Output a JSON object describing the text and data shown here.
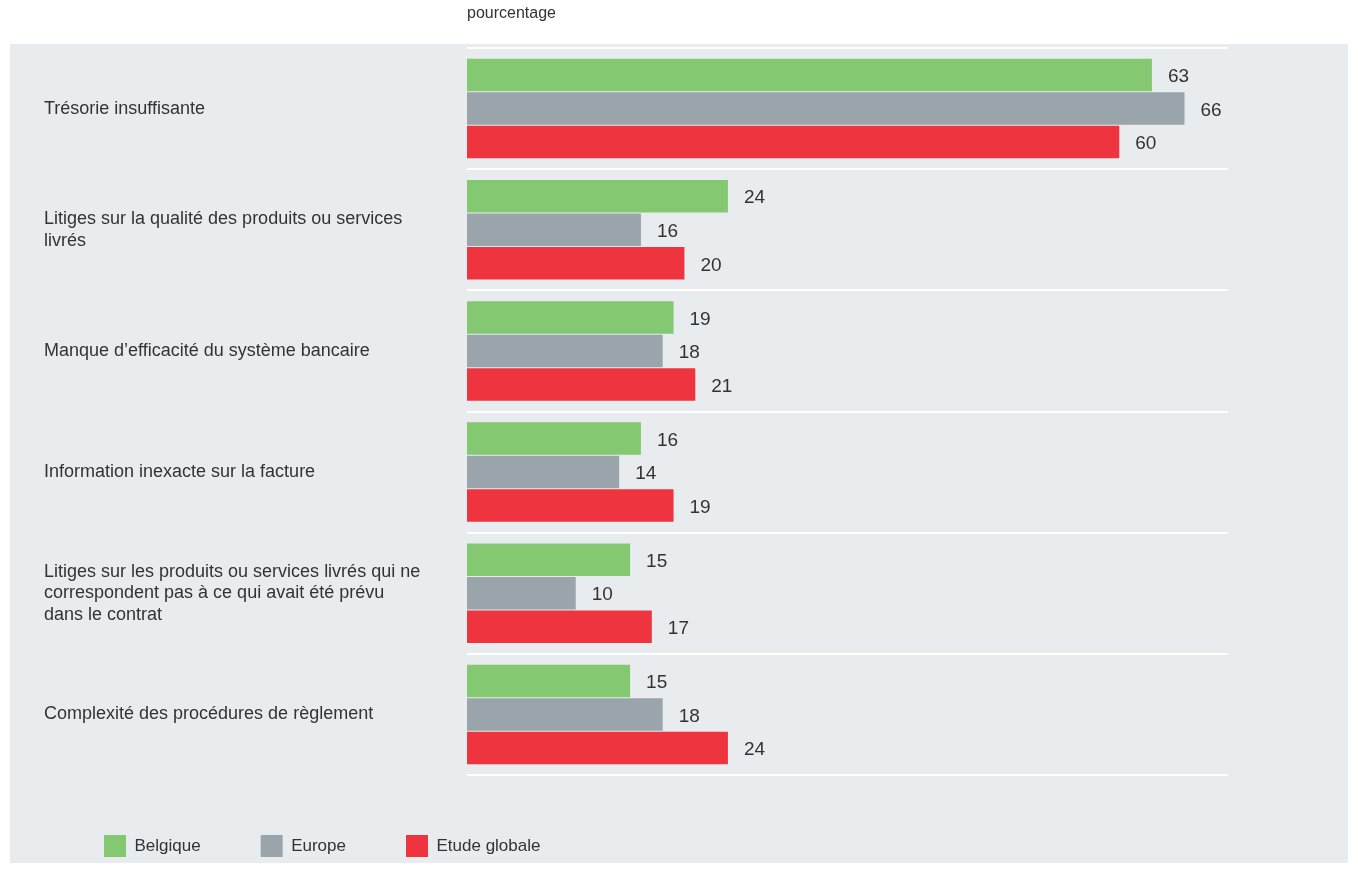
{
  "chart_data": {
    "type": "bar",
    "orientation": "horizontal",
    "xlabel": "pourcentage",
    "categories": [
      "Trésorie insuffisante",
      "Litiges sur la qualité des produits ou services livrés",
      "Manque d’efficacité du système bancaire",
      "Information inexacte sur la facture",
      "Litiges sur les produits ou services livrés qui ne correspondent pas à ce qui avait été prévu dans le contrat",
      "Complexité des procédures de règlement"
    ],
    "series": [
      {
        "name": "Belgique",
        "color": "#85c872",
        "values": [
          63,
          24,
          19,
          16,
          15,
          15
        ]
      },
      {
        "name": "Europe",
        "color": "#9aa4ab",
        "values": [
          66,
          16,
          18,
          14,
          10,
          18
        ]
      },
      {
        "name": "Etude globale",
        "color": "#ee343f",
        "values": [
          60,
          20,
          21,
          19,
          17,
          24
        ]
      }
    ],
    "data_labels": true,
    "grid": "y",
    "legend": "bottom"
  }
}
